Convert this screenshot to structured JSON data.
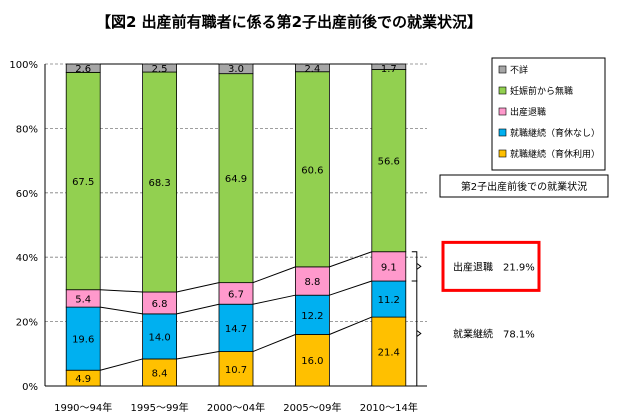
{
  "chart_data": {
    "type": "bar",
    "stacked": true,
    "title": "【図2 出産前有職者に係る第2子出産前後での就業状況】",
    "categories": [
      "1990～94年",
      "1995～99年",
      "2000～04年",
      "2005～09年",
      "2010～14年"
    ],
    "y_ticks": [
      "0%",
      "20%",
      "40%",
      "60%",
      "80%",
      "100%"
    ],
    "ylim": [
      0,
      100
    ],
    "grid": true,
    "series": [
      {
        "name": "就職継続（育休利用）",
        "color": "#FFC000",
        "values": [
          4.9,
          8.4,
          10.7,
          16.0,
          21.4
        ],
        "labels": [
          "4.9",
          "8.4",
          "10.7",
          "16.0",
          "21.4"
        ]
      },
      {
        "name": "就職継続（育休なし）",
        "color": "#00B0F0",
        "values": [
          19.6,
          14.0,
          14.7,
          12.2,
          11.2
        ],
        "labels": [
          "19.6",
          "14.0",
          "14.7",
          "12.2",
          "11.2"
        ]
      },
      {
        "name": "出産退職",
        "color": "#FF99CC",
        "values": [
          5.4,
          6.8,
          6.7,
          8.8,
          9.1
        ],
        "labels": [
          "5.4",
          "6.8",
          "6.7",
          "8.8",
          "9.1"
        ]
      },
      {
        "name": "妊娠前から無職",
        "color": "#92D050",
        "values": [
          67.5,
          68.3,
          64.9,
          60.6,
          56.6
        ],
        "labels": [
          "67.5",
          "68.3",
          "64.9",
          "60.6",
          "56.6"
        ]
      },
      {
        "name": "不詳",
        "color": "#A6A6A6",
        "values": [
          2.6,
          2.5,
          3.0,
          2.4,
          1.7
        ],
        "labels": [
          "2.6",
          "2.5",
          "3.0",
          "2.4",
          "1.7"
        ]
      }
    ],
    "legend_order": [
      "不詳",
      "妊娠前から無職",
      "出産退職",
      "就職継続（育休なし）",
      "就職継続（育休利用）"
    ],
    "legend_position": "top-right",
    "side_box_label": "第2子出産前後での就業状況",
    "annotations": [
      {
        "label": "出産退職",
        "value": "21.9%",
        "highlight": true,
        "highlight_color": "#FF0000"
      },
      {
        "label": "就業継続",
        "value": "78.1%",
        "highlight": false
      }
    ]
  }
}
